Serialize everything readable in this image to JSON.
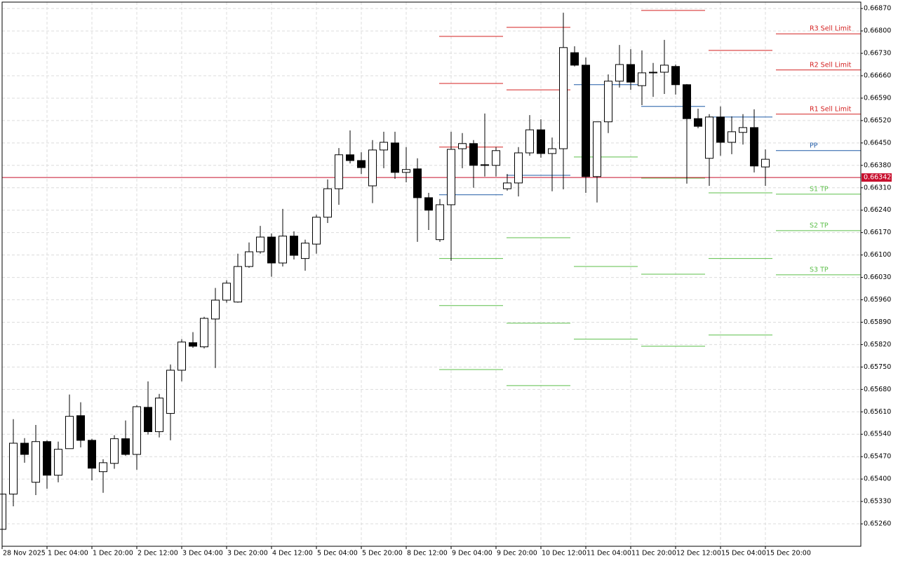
{
  "chart_data": {
    "type": "candlestick",
    "categories": [
      "28 Nov 2025",
      null,
      null,
      null,
      "1 Dec 04:00",
      null,
      null,
      null,
      "1 Dec 20:00",
      null,
      null,
      null,
      "2 Dec 12:00",
      null,
      null,
      null,
      "3 Dec 04:00",
      null,
      null,
      null,
      "3 Dec 20:00",
      null,
      null,
      null,
      "4 Dec 12:00",
      null,
      null,
      null,
      "5 Dec 04:00",
      null,
      null,
      null,
      "5 Dec 20:00",
      null,
      null,
      null,
      "8 Dec 12:00",
      null,
      null,
      null,
      "9 Dec 04:00",
      null,
      null,
      null,
      "9 Dec 20:00",
      null,
      null,
      null,
      "10 Dec 12:00",
      null,
      null,
      null,
      "11 Dec 04:00",
      null,
      null,
      null,
      "11 Dec 20:00",
      null,
      null,
      null,
      "12 Dec 12:00",
      null,
      null,
      null,
      "15 Dec 04:00",
      null,
      null,
      null,
      "15 Dec 20:00"
    ],
    "open": [
      0.65243,
      0.65353,
      0.65512,
      0.6539,
      0.65517,
      0.65412,
      0.65495,
      0.65598,
      0.65521,
      0.65423,
      0.65449,
      0.65526,
      0.65477,
      0.65624,
      0.65548,
      0.65605,
      0.6574,
      0.65826,
      0.65813,
      0.659,
      0.65959,
      0.65953,
      0.66064,
      0.6611,
      0.66156,
      0.66075,
      0.66159,
      0.66089,
      0.66134,
      0.66218,
      0.66307,
      0.66413,
      0.66395,
      0.66316,
      0.66428,
      0.6645,
      0.66358,
      0.66369,
      0.66279,
      0.66148,
      0.66257,
      0.66432,
      0.66448,
      0.6638,
      0.6638,
      0.66307,
      0.66325,
      0.66419,
      0.66491,
      0.66417,
      0.66432,
      0.66732,
      0.66693,
      0.66345,
      0.66516,
      0.66643,
      0.66695,
      0.66629,
      0.66669,
      0.66671,
      0.66689,
      0.66632,
      0.66526,
      0.66402,
      0.66531,
      0.66452,
      0.66483,
      0.66498,
      0.66375
    ],
    "high": [
      0.65353,
      0.65587,
      0.65528,
      0.65569,
      0.65521,
      0.65517,
      0.65664,
      0.6564,
      0.65526,
      0.65462,
      0.65537,
      0.65583,
      0.65631,
      0.65705,
      0.65666,
      0.65758,
      0.65837,
      0.65859,
      0.65907,
      0.65997,
      0.66021,
      0.66104,
      0.66139,
      0.66191,
      0.66167,
      0.66244,
      0.66174,
      0.66148,
      0.66226,
      0.66336,
      0.66434,
      0.66489,
      0.66421,
      0.66459,
      0.66485,
      0.66485,
      0.66437,
      0.66402,
      0.66294,
      0.66275,
      0.66485,
      0.66481,
      0.66459,
      0.66542,
      0.66437,
      0.66353,
      0.66437,
      0.66537,
      0.66524,
      0.66467,
      0.66857,
      0.66752,
      0.66717,
      0.66516,
      0.66664,
      0.66756,
      0.66743,
      0.66739,
      0.667,
      0.66772,
      0.66695,
      0.66634,
      0.66557,
      0.6654,
      0.66564,
      0.66533,
      0.6654,
      0.66555,
      0.6643
    ],
    "low": [
      0.65243,
      0.65315,
      0.65451,
      0.6535,
      0.6537,
      0.6539,
      0.65495,
      0.65499,
      0.65396,
      0.65357,
      0.65432,
      0.65473,
      0.65429,
      0.65539,
      0.6553,
      0.65521,
      0.65705,
      0.6581,
      0.65808,
      0.65747,
      0.65951,
      0.65951,
      0.6606,
      0.66104,
      0.66032,
      0.66064,
      0.66086,
      0.66051,
      0.66104,
      0.662,
      0.66257,
      0.66386,
      0.66353,
      0.66262,
      0.66371,
      0.66338,
      0.66327,
      0.66141,
      0.66178,
      0.66141,
      0.66082,
      0.66371,
      0.6631,
      0.66345,
      0.66345,
      0.66301,
      0.66283,
      0.6641,
      0.66404,
      0.66299,
      0.66305,
      0.66689,
      0.66294,
      0.66264,
      0.66481,
      0.66623,
      0.66616,
      0.66568,
      0.66594,
      0.66603,
      0.66601,
      0.66323,
      0.66496,
      0.66316,
      0.6641,
      0.66415,
      0.66445,
      0.66358,
      0.66316
    ],
    "close": [
      0.65353,
      0.65512,
      0.65477,
      0.65517,
      0.65412,
      0.65493,
      0.65596,
      0.65521,
      0.65434,
      0.65451,
      0.65526,
      0.65477,
      0.65626,
      0.65548,
      0.65653,
      0.6574,
      0.65828,
      0.65815,
      0.65902,
      0.65959,
      0.66012,
      0.66064,
      0.6611,
      0.66156,
      0.66075,
      0.66159,
      0.66099,
      0.66137,
      0.66218,
      0.66307,
      0.66413,
      0.66395,
      0.66373,
      0.66428,
      0.66452,
      0.66358,
      0.66367,
      0.66279,
      0.6624,
      0.66257,
      0.6643,
      0.66448,
      0.6638,
      0.66382,
      0.66426,
      0.66325,
      0.66419,
      0.66491,
      0.66417,
      0.66432,
      0.66748,
      0.66693,
      0.66345,
      0.66516,
      0.66643,
      0.66695,
      0.6664,
      0.66669,
      0.66671,
      0.66693,
      0.66632,
      0.66526,
      0.66502,
      0.66531,
      0.66452,
      0.66485,
      0.66498,
      0.66378,
      0.66399
    ],
    "up_color": "#ffffff",
    "down_color": "#000000",
    "levels": [
      {
        "name": "R3 Sell Limit",
        "color": "#d42020",
        "values": [
          0.66783,
          null,
          null,
          null,
          null,
          0.66791
        ]
      },
      {
        "name": "R2 Sell Limit",
        "color": "#d42020",
        "values": [
          0.66636,
          0.66811,
          null,
          null,
          null,
          0.66678
        ]
      },
      {
        "name": "R1 Sell Limit",
        "color": "#d42020",
        "values": [
          0.66437,
          0.66616,
          null,
          0.66864,
          0.66739,
          0.6654
        ]
      },
      {
        "name": "PP",
        "color": "#1f5aa6",
        "values": [
          0.66288,
          0.66349,
          0.66632,
          0.66564,
          0.66531,
          0.66426
        ]
      },
      {
        "name": "S1 TP",
        "color": "#5cbf4a",
        "values": [
          0.66089,
          0.66154,
          0.66406,
          0.6634,
          0.66294,
          0.6629
        ]
      },
      {
        "name": "S2 TP",
        "color": "#5cbf4a",
        "values": [
          0.65942,
          0.65887,
          0.66064,
          0.6604,
          0.66089,
          0.66176
        ]
      },
      {
        "name": "S3 TP",
        "color": "#5cbf4a",
        "values": [
          0.65742,
          0.65692,
          0.65837,
          0.65815,
          0.6585,
          0.66038
        ]
      }
    ],
    "current_price": {
      "value": 0.66342,
      "label": "0.66342"
    },
    "current_price_color": "#c8102e",
    "ylim": [
      0.6519,
      0.6689
    ],
    "yticks": [
      {
        "value": 0.6687,
        "label": "0.66870"
      },
      {
        "value": 0.668,
        "label": "0.66800"
      },
      {
        "value": 0.6673,
        "label": "0.66730"
      },
      {
        "value": 0.6666,
        "label": "0.66660"
      },
      {
        "value": 0.6659,
        "label": "0.66590"
      },
      {
        "value": 0.6652,
        "label": "0.66520"
      },
      {
        "value": 0.6645,
        "label": "0.66450"
      },
      {
        "value": 0.6638,
        "label": "0.66380"
      },
      {
        "value": 0.6631,
        "label": "0.66310"
      },
      {
        "value": 0.6624,
        "label": "0.66240"
      },
      {
        "value": 0.6617,
        "label": "0.66170"
      },
      {
        "value": 0.661,
        "label": "0.66100"
      },
      {
        "value": 0.6603,
        "label": "0.66030"
      },
      {
        "value": 0.6596,
        "label": "0.65960"
      },
      {
        "value": 0.6589,
        "label": "0.65890"
      },
      {
        "value": 0.6582,
        "label": "0.65820"
      },
      {
        "value": 0.6575,
        "label": "0.65750"
      },
      {
        "value": 0.6568,
        "label": "0.65680"
      },
      {
        "value": 0.6561,
        "label": "0.65610"
      },
      {
        "value": 0.6554,
        "label": "0.65540"
      },
      {
        "value": 0.6547,
        "label": "0.65470"
      },
      {
        "value": 0.654,
        "label": "0.65400"
      },
      {
        "value": 0.6533,
        "label": "0.65330"
      },
      {
        "value": 0.6526,
        "label": "0.65260"
      }
    ],
    "grid": true
  }
}
